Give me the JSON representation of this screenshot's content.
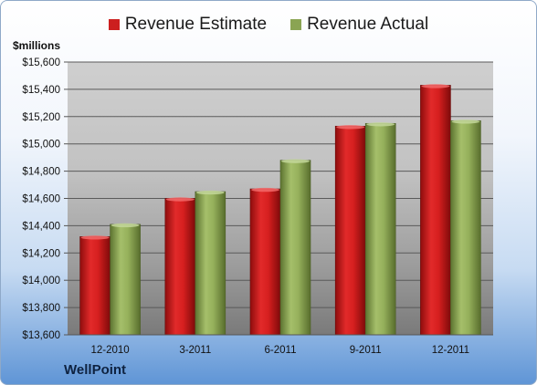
{
  "chart_data": {
    "type": "bar",
    "title": "",
    "ylabel": "$millions",
    "xlabel": "",
    "ylim": [
      13600,
      15600
    ],
    "ytick_step": 200,
    "grid": true,
    "legend_position": "top",
    "categories": [
      "12-2010",
      "3-2011",
      "6-2011",
      "9-2011",
      "12-2011"
    ],
    "series": [
      {
        "name": "Revenue Estimate",
        "color": "#cc1f1f",
        "values": [
          14320,
          14600,
          14670,
          15130,
          15430
        ]
      },
      {
        "name": "Revenue Actual",
        "color": "#8aa453",
        "values": [
          14410,
          14650,
          14880,
          15150,
          15170
        ]
      }
    ]
  },
  "footer": {
    "company": "WellPoint"
  }
}
